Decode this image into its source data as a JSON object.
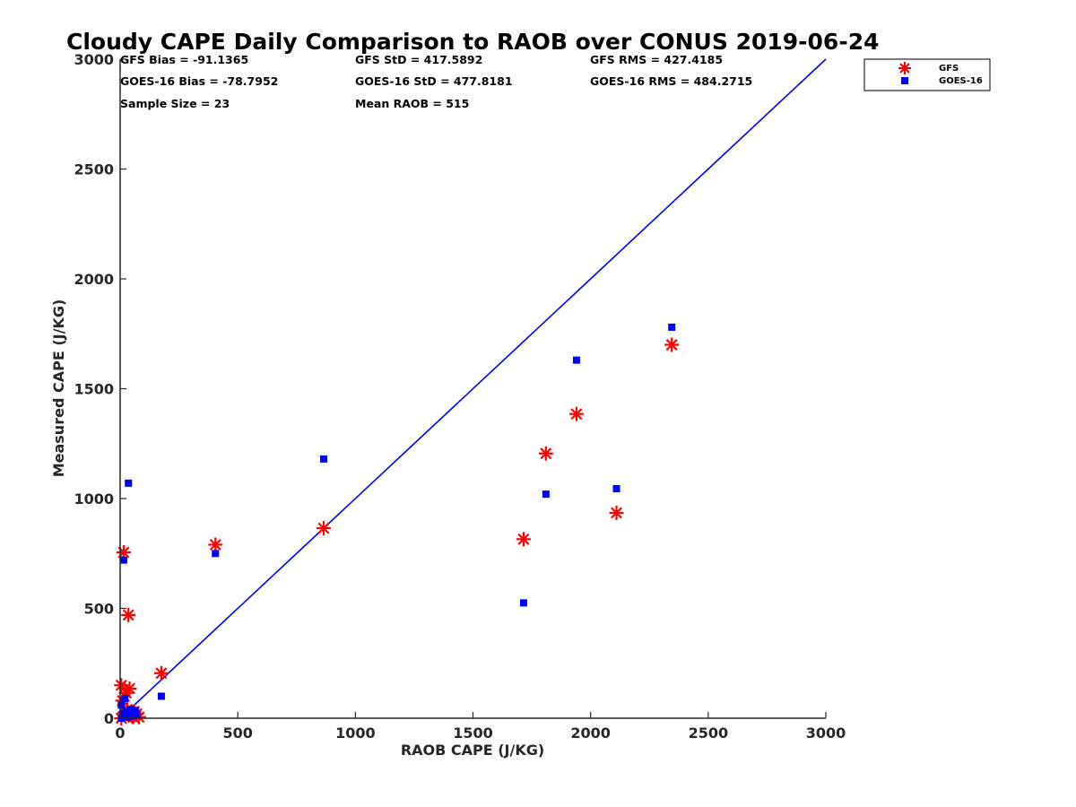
{
  "chart_data": {
    "type": "scatter",
    "title": "Cloudy CAPE Daily Comparison to RAOB over CONUS 2019-06-24",
    "xlabel": "RAOB CAPE (J/KG)",
    "ylabel": "Measured CAPE (J/KG)",
    "xlim": [
      0,
      3000
    ],
    "ylim": [
      0,
      3000
    ],
    "xticks": [
      0,
      500,
      1000,
      1500,
      2000,
      2500,
      3000
    ],
    "yticks": [
      0,
      500,
      1000,
      1500,
      2000,
      2500,
      3000
    ],
    "xtick_labels": [
      "0",
      "500",
      "1000",
      "1500",
      "2000",
      "2500",
      "3000"
    ],
    "ytick_labels": [
      "0",
      "500",
      "1000",
      "1500",
      "2000",
      "2500",
      "3000"
    ],
    "legend_position": "top-right, outside plot",
    "reference_line": {
      "name": "1:1 line",
      "x": [
        0,
        3000
      ],
      "y": [
        0,
        3000
      ],
      "color": "#0000ff"
    },
    "stats": [
      [
        "GFS Bias = -91.1365",
        "GFS StD = 417.5892",
        "GFS RMS = 427.4185"
      ],
      [
        "GOES-16 Bias = -78.7952",
        "GOES-16 StD = 477.8181",
        "GOES-16 RMS = 484.2715"
      ],
      [
        "Sample Size = 23",
        "Mean RAOB = 515"
      ]
    ],
    "series": [
      {
        "name": "GFS",
        "marker": "asterisk",
        "color": "#ff0000",
        "x": [
          2345,
          1940,
          1810,
          1715,
          2110,
          865,
          405,
          175,
          15,
          35,
          5,
          40,
          25,
          10,
          60,
          70,
          80,
          30,
          50,
          20,
          5,
          45,
          55
        ],
        "y": [
          1700,
          1385,
          1205,
          815,
          935,
          865,
          790,
          205,
          755,
          470,
          150,
          135,
          115,
          80,
          30,
          20,
          5,
          40,
          10,
          25,
          0,
          15,
          5
        ]
      },
      {
        "name": "GOES-16",
        "marker": "square",
        "color": "#0000ff",
        "x": [
          2345,
          1940,
          1810,
          1715,
          2110,
          865,
          405,
          175,
          15,
          35,
          5,
          20,
          25,
          10,
          60,
          70,
          40,
          30,
          50,
          65,
          5,
          45,
          55
        ],
        "y": [
          1780,
          1630,
          1020,
          525,
          1045,
          1180,
          750,
          100,
          720,
          1070,
          60,
          90,
          30,
          20,
          35,
          15,
          10,
          5,
          25,
          30,
          0,
          40,
          10
        ]
      }
    ]
  }
}
